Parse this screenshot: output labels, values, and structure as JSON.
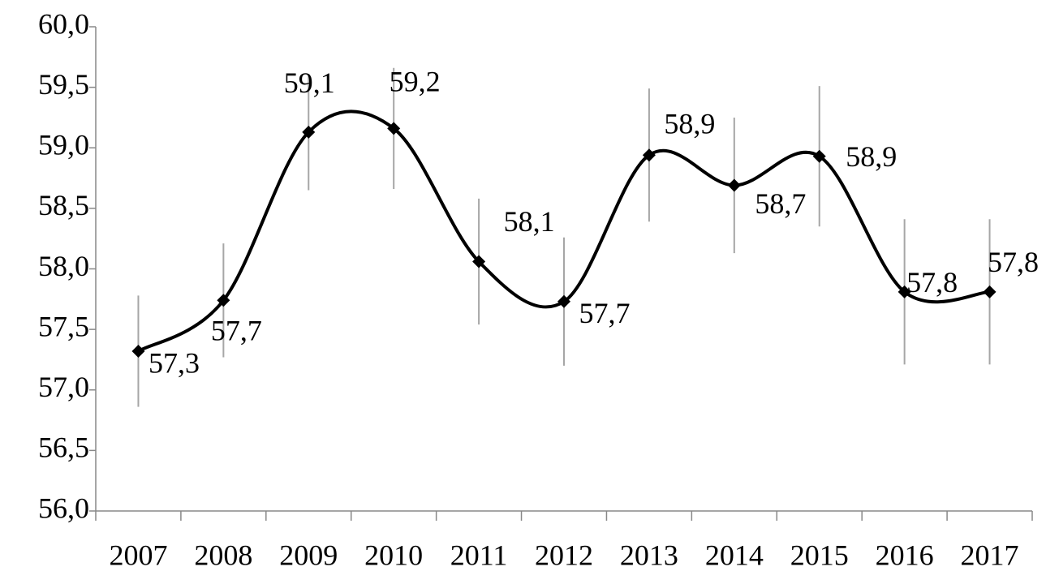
{
  "chart_data": {
    "type": "line",
    "categories": [
      "2007",
      "2008",
      "2009",
      "2010",
      "2011",
      "2012",
      "2013",
      "2014",
      "2015",
      "2016",
      "2017"
    ],
    "series": [
      {
        "color": "#000000",
        "values": [
          57.32,
          57.74,
          59.13,
          59.16,
          58.06,
          57.73,
          58.94,
          58.69,
          58.93,
          57.81,
          57.81
        ],
        "value_labels": [
          "57,3",
          "57,7",
          "59,1",
          "59,2",
          "58,1",
          "57,7",
          "58,9",
          "58,7",
          "58,9",
          "57,8",
          "57,8"
        ],
        "errors": [
          0.46,
          0.47,
          0.48,
          0.5,
          0.52,
          0.53,
          0.55,
          0.56,
          0.58,
          0.6,
          0.6
        ],
        "error_color": "#a6a6a6"
      }
    ],
    "ylim": [
      56,
      60
    ],
    "yticks": [
      {
        "value": 56,
        "label": "56,0"
      },
      {
        "value": 56.5,
        "label": "56,5"
      },
      {
        "value": 57,
        "label": "57,0"
      },
      {
        "value": 57.5,
        "label": "57,5"
      },
      {
        "value": 58,
        "label": "58,0"
      },
      {
        "value": 58.5,
        "label": "58,5"
      },
      {
        "value": 59,
        "label": "59,0"
      },
      {
        "value": 59.5,
        "label": "59,5"
      },
      {
        "value": 60,
        "label": "60,0"
      }
    ],
    "smooth": true,
    "marker": "diamond",
    "grid": false
  }
}
